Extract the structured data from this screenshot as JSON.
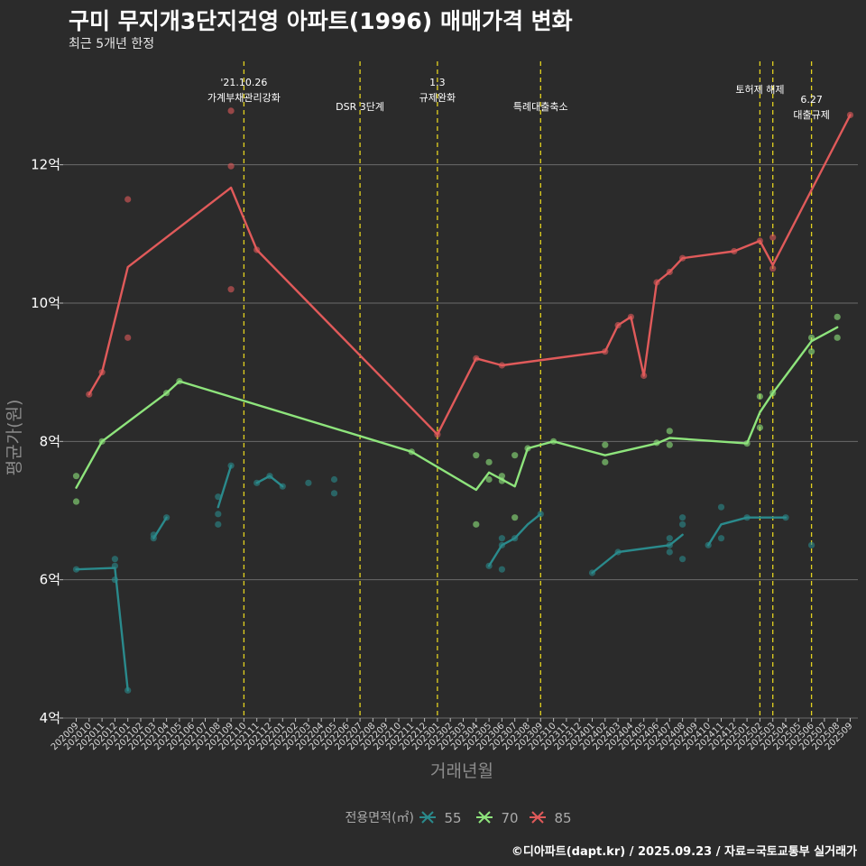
{
  "header": {
    "title": "구미 무지개3단지건영 아파트(1996) 매매가격 변화",
    "subtitle": "최근 5개년 한정"
  },
  "footer": {
    "caption": "©디아파트(dapt.kr) / 2025.09.23 / 자료=국토교통부 실거래가"
  },
  "chart_data": {
    "type": "line",
    "title": "구미 무지개3단지건영 아파트(1996) 매매가격 변화",
    "subtitle": "최근 5개년 한정",
    "xlabel": "거래년월",
    "ylabel": "평균가(원)",
    "ylim": [
      4,
      13.6
    ],
    "y_ticks": [
      {
        "value": 4,
        "label": "4억"
      },
      {
        "value": 6,
        "label": "6억"
      },
      {
        "value": 8,
        "label": "8억"
      },
      {
        "value": 10,
        "label": "10억"
      },
      {
        "value": 12,
        "label": "12억"
      }
    ],
    "x_categories": [
      "202009",
      "202010",
      "202011",
      "202012",
      "202101",
      "202102",
      "202103",
      "202104",
      "202105",
      "202106",
      "202107",
      "202108",
      "202109",
      "202110",
      "202111",
      "202112",
      "202201",
      "202202",
      "202203",
      "202204",
      "202205",
      "202206",
      "202207",
      "202208",
      "202209",
      "202210",
      "202211",
      "202212",
      "202301",
      "202302",
      "202303",
      "202304",
      "202305",
      "202306",
      "202307",
      "202308",
      "202309",
      "202310",
      "202311",
      "202312",
      "202401",
      "202402",
      "202403",
      "202404",
      "202405",
      "202406",
      "202407",
      "202408",
      "202409",
      "202410",
      "202411",
      "202412",
      "202501",
      "202502",
      "202503",
      "202504",
      "202505",
      "202506",
      "202507",
      "202508",
      "202509"
    ],
    "grid": true,
    "legend": {
      "title": "전용면적(㎡)",
      "position": "bottom"
    },
    "annotations": [
      {
        "x": 13,
        "lines": [
          "'21.10.26",
          "가계부채관리강화"
        ]
      },
      {
        "x": 22,
        "lines": [
          "DSR 3단계"
        ]
      },
      {
        "x": 28,
        "lines": [
          "1.3",
          "규제완화"
        ]
      },
      {
        "x": 36,
        "lines": [
          "특례대출축소"
        ]
      },
      {
        "x": 53,
        "lines": [
          "토허제 해제"
        ]
      },
      {
        "x": 54,
        "lines": []
      },
      {
        "x": 57,
        "lines": [
          "6.27",
          "대출규제"
        ]
      }
    ],
    "series": [
      {
        "name": "55",
        "color": "#2a8a8c",
        "line_segments": [
          [
            [
              0,
              6.15
            ],
            [
              3,
              6.17
            ],
            [
              4,
              4.4
            ]
          ],
          [
            [
              6,
              6.6
            ],
            [
              7,
              6.9
            ]
          ],
          [
            [
              11,
              7.05
            ],
            [
              12,
              7.65
            ]
          ],
          [
            [
              14,
              7.4
            ],
            [
              15,
              7.5
            ],
            [
              16,
              7.35
            ]
          ],
          [
            [
              32,
              6.2
            ],
            [
              33,
              6.5
            ],
            [
              34,
              6.6
            ],
            [
              35,
              6.8
            ],
            [
              36,
              6.95
            ]
          ],
          [
            [
              40,
              6.1
            ],
            [
              42,
              6.4
            ],
            [
              46,
              6.5
            ],
            [
              47,
              6.65
            ]
          ],
          [
            [
              49,
              6.5
            ],
            [
              50,
              6.8
            ],
            [
              52,
              6.9
            ],
            [
              55,
              6.9
            ]
          ]
        ],
        "points": [
          [
            0,
            6.15
          ],
          [
            3,
            6.3
          ],
          [
            3,
            6.2
          ],
          [
            3,
            6.0
          ],
          [
            4,
            4.4
          ],
          [
            6,
            6.6
          ],
          [
            6,
            6.65
          ],
          [
            7,
            6.9
          ],
          [
            11,
            7.2
          ],
          [
            11,
            6.95
          ],
          [
            11,
            6.8
          ],
          [
            12,
            7.65
          ],
          [
            14,
            7.4
          ],
          [
            15,
            7.5
          ],
          [
            16,
            7.35
          ],
          [
            18,
            7.4
          ],
          [
            20,
            7.45
          ],
          [
            20,
            7.25
          ],
          [
            32,
            6.2
          ],
          [
            33,
            6.6
          ],
          [
            33,
            6.5
          ],
          [
            33,
            6.15
          ],
          [
            34,
            6.6
          ],
          [
            36,
            6.95
          ],
          [
            40,
            6.1
          ],
          [
            42,
            6.4
          ],
          [
            46,
            6.6
          ],
          [
            46,
            6.5
          ],
          [
            46,
            6.4
          ],
          [
            47,
            6.9
          ],
          [
            47,
            6.8
          ],
          [
            47,
            6.3
          ],
          [
            49,
            6.5
          ],
          [
            50,
            7.05
          ],
          [
            50,
            6.6
          ],
          [
            52,
            6.9
          ],
          [
            55,
            6.9
          ],
          [
            57,
            6.5
          ]
        ]
      },
      {
        "name": "70",
        "color": "#8ee47c",
        "line_segments": [
          [
            [
              0,
              7.33
            ],
            [
              2,
              8.0
            ],
            [
              7,
              8.7
            ],
            [
              8,
              8.87
            ],
            [
              26,
              7.85
            ],
            [
              31,
              7.3
            ],
            [
              32,
              7.55
            ],
            [
              33,
              7.45
            ],
            [
              34,
              7.35
            ],
            [
              35,
              7.9
            ],
            [
              37,
              8.0
            ],
            [
              41,
              7.8
            ],
            [
              45,
              7.97
            ],
            [
              46,
              8.05
            ],
            [
              52,
              7.97
            ],
            [
              53,
              8.42
            ],
            [
              54,
              8.7
            ],
            [
              57,
              9.45
            ],
            [
              59,
              9.65
            ]
          ]
        ],
        "points": [
          [
            0,
            7.5
          ],
          [
            0,
            7.13
          ],
          [
            2,
            8.0
          ],
          [
            7,
            8.7
          ],
          [
            8,
            8.87
          ],
          [
            26,
            7.85
          ],
          [
            31,
            7.8
          ],
          [
            31,
            6.8
          ],
          [
            32,
            7.7
          ],
          [
            32,
            7.45
          ],
          [
            33,
            7.5
          ],
          [
            33,
            7.43
          ],
          [
            34,
            6.9
          ],
          [
            34,
            7.8
          ],
          [
            35,
            7.9
          ],
          [
            37,
            8.0
          ],
          [
            41,
            7.95
          ],
          [
            41,
            7.7
          ],
          [
            45,
            7.98
          ],
          [
            46,
            8.15
          ],
          [
            46,
            7.95
          ],
          [
            52,
            7.97
          ],
          [
            53,
            8.65
          ],
          [
            53,
            8.2
          ],
          [
            54,
            8.7
          ],
          [
            57,
            9.5
          ],
          [
            57,
            9.3
          ],
          [
            59,
            9.8
          ],
          [
            59,
            9.5
          ]
        ]
      },
      {
        "name": "85",
        "color": "#e05a5a",
        "line_segments": [
          [
            [
              1,
              8.68
            ],
            [
              2,
              9.0
            ],
            [
              4,
              10.52
            ],
            [
              12,
              11.67
            ],
            [
              14,
              10.77
            ],
            [
              28,
              8.1
            ],
            [
              31,
              9.2
            ],
            [
              33,
              9.1
            ],
            [
              41,
              9.3
            ],
            [
              42,
              9.68
            ],
            [
              43,
              9.8
            ],
            [
              44,
              8.95
            ],
            [
              45,
              10.3
            ],
            [
              46,
              10.45
            ],
            [
              47,
              10.65
            ],
            [
              51,
              10.75
            ],
            [
              53,
              10.9
            ],
            [
              54,
              10.55
            ],
            [
              60,
              12.72
            ]
          ]
        ],
        "points": [
          [
            1,
            8.68
          ],
          [
            2,
            9.0
          ],
          [
            4,
            11.5
          ],
          [
            4,
            9.5
          ],
          [
            12,
            12.78
          ],
          [
            12,
            11.98
          ],
          [
            12,
            10.2
          ],
          [
            14,
            10.77
          ],
          [
            28,
            8.1
          ],
          [
            31,
            9.2
          ],
          [
            33,
            9.1
          ],
          [
            41,
            9.3
          ],
          [
            42,
            9.68
          ],
          [
            43,
            9.8
          ],
          [
            44,
            8.95
          ],
          [
            45,
            10.3
          ],
          [
            46,
            10.45
          ],
          [
            47,
            10.65
          ],
          [
            51,
            10.75
          ],
          [
            53,
            10.9
          ],
          [
            54,
            10.95
          ],
          [
            54,
            10.5
          ],
          [
            60,
            12.72
          ]
        ]
      }
    ]
  }
}
